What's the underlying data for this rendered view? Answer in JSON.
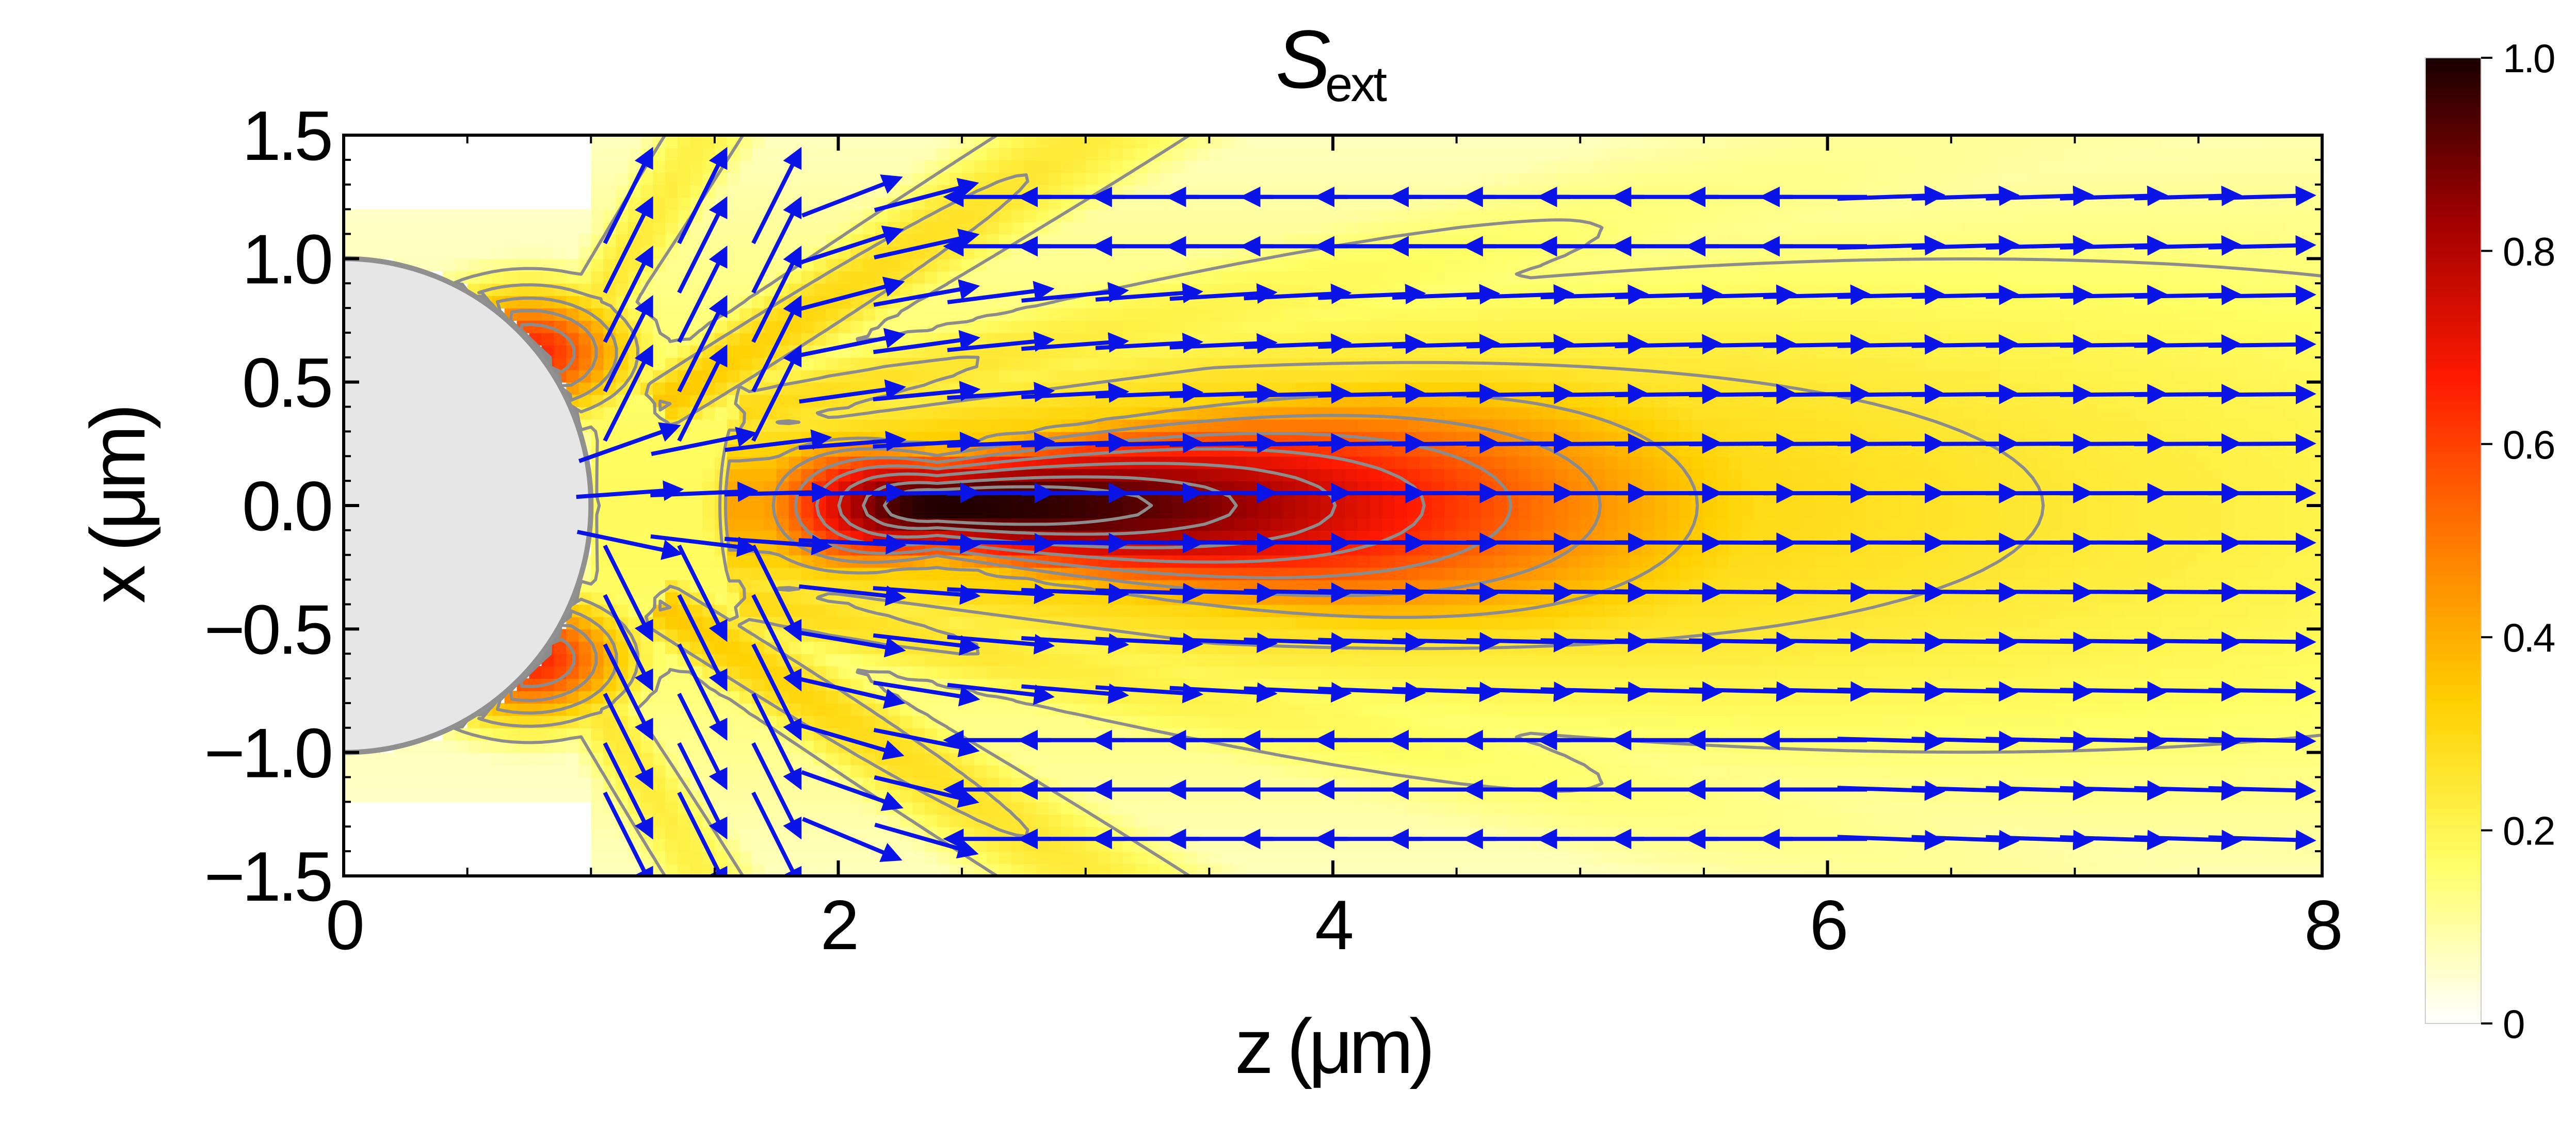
{
  "chart_data": {
    "type": "heatmap",
    "title": {
      "symbol": "S",
      "subscript": "ext"
    },
    "xlabel": "z (μm)",
    "ylabel": "x (μm)",
    "xlim": [
      0,
      8
    ],
    "ylim": [
      -1.5,
      1.5
    ],
    "xticks": [
      0,
      2,
      4,
      6,
      8
    ],
    "xtick_labels": [
      "0",
      "2",
      "4",
      "6",
      "8"
    ],
    "yticks": [
      -1.5,
      -1.0,
      -0.5,
      0.0,
      0.5,
      1.0,
      1.5
    ],
    "ytick_labels": [
      "−1.5",
      "−1.0",
      "−0.5",
      "0.0",
      "0.5",
      "1.0",
      "1.5"
    ],
    "colorbar": {
      "range": [
        0,
        1
      ],
      "ticks": [
        0,
        0.2,
        0.4,
        0.6,
        0.8,
        1.0
      ],
      "tick_labels": [
        "0",
        "0.2",
        "0.4",
        "0.6",
        "0.8",
        "1.0"
      ],
      "colormap": [
        "#ffffff",
        "#ffff66",
        "#ffd000",
        "#ff7a00",
        "#ff1a00",
        "#a00000",
        "#1a0000"
      ]
    },
    "sphere": {
      "center": [
        0,
        0
      ],
      "radius": 1.0,
      "color": "#e6e6e6",
      "edge_color": "#909090"
    },
    "contour_color": "#8c8c8c",
    "arrow_color": "#0a14e6",
    "field_model": {
      "focus": {
        "z": 2.4,
        "x": 0,
        "peak": 1.0
      },
      "beam_levels": [
        0.15,
        0.25,
        0.35,
        0.45,
        0.55,
        0.65,
        0.75,
        0.85,
        0.92
      ],
      "side_lobes": [
        {
          "z": 0.75,
          "x": 0.62,
          "peak": 0.65
        },
        {
          "z": 0.75,
          "x": -0.62,
          "peak": 0.65
        }
      ],
      "rays": [
        {
          "z0": 1.05,
          "x0": 0.85,
          "angle_deg": 58,
          "peak": 0.25
        },
        {
          "z0": 1.05,
          "x0": -0.85,
          "angle_deg": -58,
          "peak": 0.25
        },
        {
          "z0": 1.35,
          "x0": 0.45,
          "angle_deg": 32,
          "peak": 0.35
        },
        {
          "z0": 1.35,
          "x0": -0.45,
          "angle_deg": -32,
          "peak": 0.35
        },
        {
          "z0": 1.7,
          "x0": 0.4,
          "angle_deg": 12,
          "peak": 0.3
        },
        {
          "z0": 1.7,
          "x0": -0.4,
          "angle_deg": -12,
          "peak": 0.3
        }
      ]
    }
  }
}
